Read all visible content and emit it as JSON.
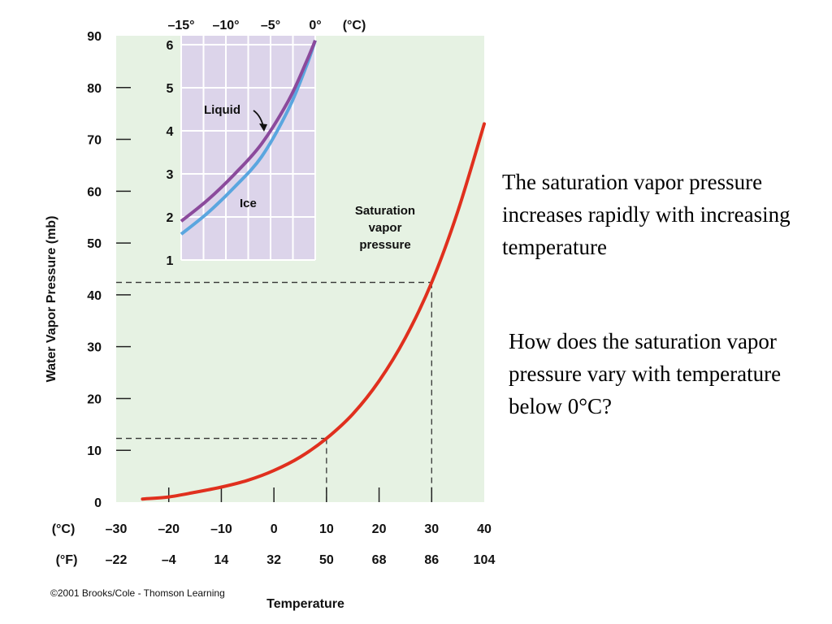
{
  "chart_data": [
    {
      "type": "line",
      "ylabel": "Water Vapor Pressure (mb)",
      "xlabel": "Temperature",
      "x_unit_label_c": "(°C)",
      "x_unit_label_f": "(°F)",
      "x_ticks_c": [
        "–30",
        "–20",
        "–10",
        "0",
        "10",
        "20",
        "30",
        "40"
      ],
      "x_ticks_f": [
        "–22",
        "–4",
        "14",
        "32",
        "50",
        "68",
        "86",
        "104"
      ],
      "x_tick_values_c": [
        -30,
        -20,
        -10,
        0,
        10,
        20,
        30,
        40
      ],
      "y_ticks": [
        "0",
        "10",
        "20",
        "30",
        "40",
        "50",
        "60",
        "70",
        "80",
        "90"
      ],
      "y_tick_values": [
        0,
        10,
        20,
        30,
        40,
        50,
        60,
        70,
        80,
        90
      ],
      "xlim": [
        -30,
        40
      ],
      "ylim": [
        0,
        90
      ],
      "grid": false,
      "series": [
        {
          "name": "Saturation vapor pressure",
          "color": "#e0301e",
          "x": [
            -25,
            -20,
            -15,
            -10,
            -5,
            0,
            5,
            10,
            15,
            20,
            25,
            30,
            35,
            40
          ],
          "y": [
            0.6,
            1.0,
            1.9,
            2.9,
            4.2,
            6.1,
            8.7,
            12.3,
            17.0,
            23.4,
            31.7,
            42.4,
            56.2,
            73.0
          ]
        }
      ],
      "annotations": [
        {
          "text_lines": [
            "Saturation",
            "vapor",
            "pressure"
          ]
        },
        {
          "reference_lines": [
            {
              "x": 10,
              "y": 12.3
            },
            {
              "x": 30,
              "y": 42.4
            }
          ]
        }
      ]
    },
    {
      "type": "line",
      "x_ticks": [
        "–15°",
        "–10°",
        "–5°",
        "0°"
      ],
      "x_tick_values": [
        -15,
        -10,
        -5,
        0
      ],
      "x_unit_label": "(°C)",
      "y_ticks": [
        "1",
        "2",
        "3",
        "4",
        "5",
        "6"
      ],
      "y_tick_values": [
        1,
        2,
        3,
        4,
        5,
        6
      ],
      "xlim": [
        -15,
        0
      ],
      "ylim": [
        1,
        6
      ],
      "grid": true,
      "series": [
        {
          "name": "Liquid",
          "color": "#8b4a9c",
          "x": [
            -15,
            -12,
            -9,
            -6,
            -3,
            -1,
            0
          ],
          "y": [
            1.9,
            2.4,
            3.0,
            3.7,
            4.7,
            5.6,
            6.1
          ]
        },
        {
          "name": "Ice",
          "color": "#5aa6df",
          "x": [
            -15,
            -12,
            -9,
            -6,
            -3,
            -1,
            0
          ],
          "y": [
            1.6,
            2.1,
            2.7,
            3.4,
            4.5,
            5.5,
            6.1
          ]
        }
      ]
    }
  ],
  "credit": "©2001 Brooks/Cole - Thomson Learning",
  "statement": "The saturation vapor pressure increases rapidly with increasing temperature",
  "question": "How does the saturation vapor pressure vary with temperature below 0°C?",
  "colors": {
    "main_plot_bg": "#e6f2e3",
    "inset_bg": "#dcd4ea",
    "inset_grid": "#ffffff",
    "reference_line": "#333333"
  }
}
